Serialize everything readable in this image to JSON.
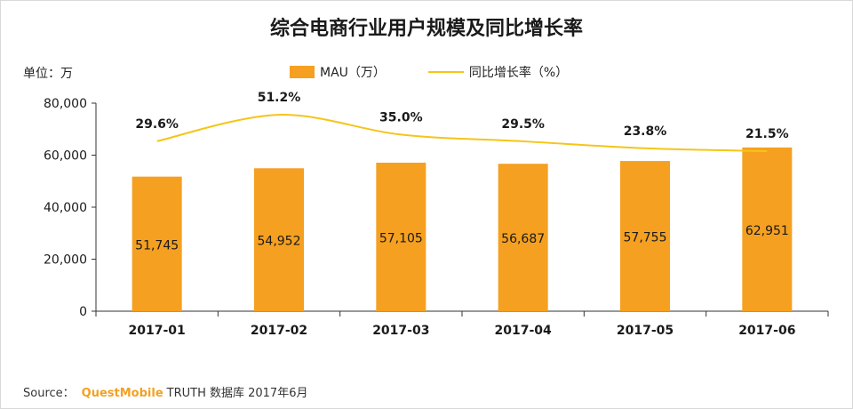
{
  "title": "综合电商行业用户规模及同比增长率",
  "unit_label": "单位：万",
  "legend": {
    "bar_label": "MAU（万）",
    "line_label": "同比增长率（%）"
  },
  "source": {
    "prefix": "Source：",
    "brand": "QuestMobile",
    "suffix": "TRUTH 数据库 2017年6月"
  },
  "colors": {
    "bar": "#F5A020",
    "line": "#F5C518",
    "brand": "#F5A020",
    "axis": "#333333"
  },
  "chart_data": {
    "type": "bar",
    "title": "综合电商行业用户规模及同比增长率",
    "ylabel": "单位：万",
    "xlabel": "",
    "ylim": [
      0,
      80000
    ],
    "yticks": [
      0,
      20000,
      40000,
      60000,
      80000
    ],
    "ytick_labels": [
      "0",
      "20,000",
      "40,000",
      "60,000",
      "80,000"
    ],
    "categories": [
      "2017-01",
      "2017-02",
      "2017-03",
      "2017-04",
      "2017-05",
      "2017-06"
    ],
    "series": [
      {
        "name": "MAU（万）",
        "kind": "bar",
        "values": [
          51745,
          54952,
          57105,
          56687,
          57755,
          62951
        ],
        "value_labels": [
          "51,745",
          "54,952",
          "57,105",
          "56,687",
          "57,755",
          "62,951"
        ]
      },
      {
        "name": "同比增长率（%）",
        "kind": "line",
        "values": [
          29.6,
          51.2,
          35.0,
          29.5,
          23.8,
          21.5
        ],
        "value_labels": [
          "29.6%",
          "51.2%",
          "35.0%",
          "29.5%",
          "23.8%",
          "21.5%"
        ]
      }
    ]
  }
}
